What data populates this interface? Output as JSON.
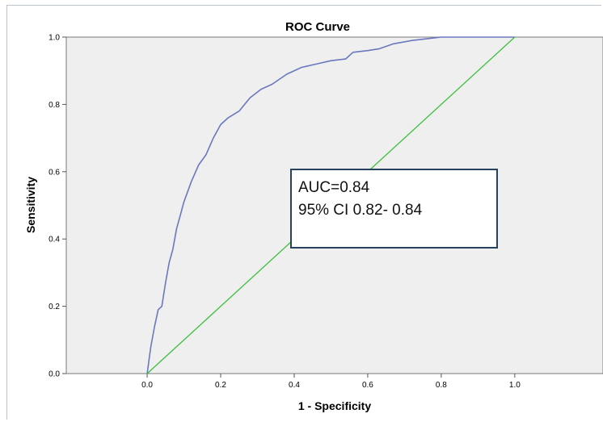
{
  "chart_data": {
    "type": "line",
    "title": "ROC Curve",
    "xlabel": "1 - Specificity",
    "ylabel": "Sensitivity",
    "xlim": [
      -0.22,
      1.24
    ],
    "ylim": [
      0,
      1
    ],
    "x_ticks": [
      "0.0",
      "0.2",
      "0.4",
      "0.6",
      "0.8",
      "1.0"
    ],
    "y_ticks": [
      "0.0",
      "0.2",
      "0.4",
      "0.6",
      "0.8",
      "1.0"
    ],
    "grid": false,
    "series": [
      {
        "color": "#6a78bf",
        "x": [
          0.0,
          0.005,
          0.01,
          0.02,
          0.03,
          0.04,
          0.05,
          0.06,
          0.07,
          0.08,
          0.09,
          0.1,
          0.12,
          0.14,
          0.16,
          0.18,
          0.2,
          0.22,
          0.25,
          0.28,
          0.31,
          0.34,
          0.38,
          0.42,
          0.46,
          0.5,
          0.54,
          0.56,
          0.6,
          0.63,
          0.67,
          0.72,
          0.76,
          0.8,
          0.85,
          0.9,
          1.0
        ],
        "y": [
          0.0,
          0.04,
          0.08,
          0.14,
          0.19,
          0.2,
          0.27,
          0.33,
          0.37,
          0.43,
          0.47,
          0.51,
          0.57,
          0.62,
          0.65,
          0.7,
          0.74,
          0.76,
          0.78,
          0.82,
          0.845,
          0.86,
          0.89,
          0.91,
          0.92,
          0.93,
          0.935,
          0.955,
          0.96,
          0.965,
          0.98,
          0.99,
          0.995,
          1.0,
          1.0,
          1.0,
          1.0
        ]
      },
      {
        "color": "#3cbf3c",
        "x": [
          0,
          1
        ],
        "y": [
          0,
          1
        ]
      }
    ],
    "annotation": {
      "lines": [
        "AUC=0.84",
        "95% CI 0.82- 0.84"
      ]
    }
  }
}
